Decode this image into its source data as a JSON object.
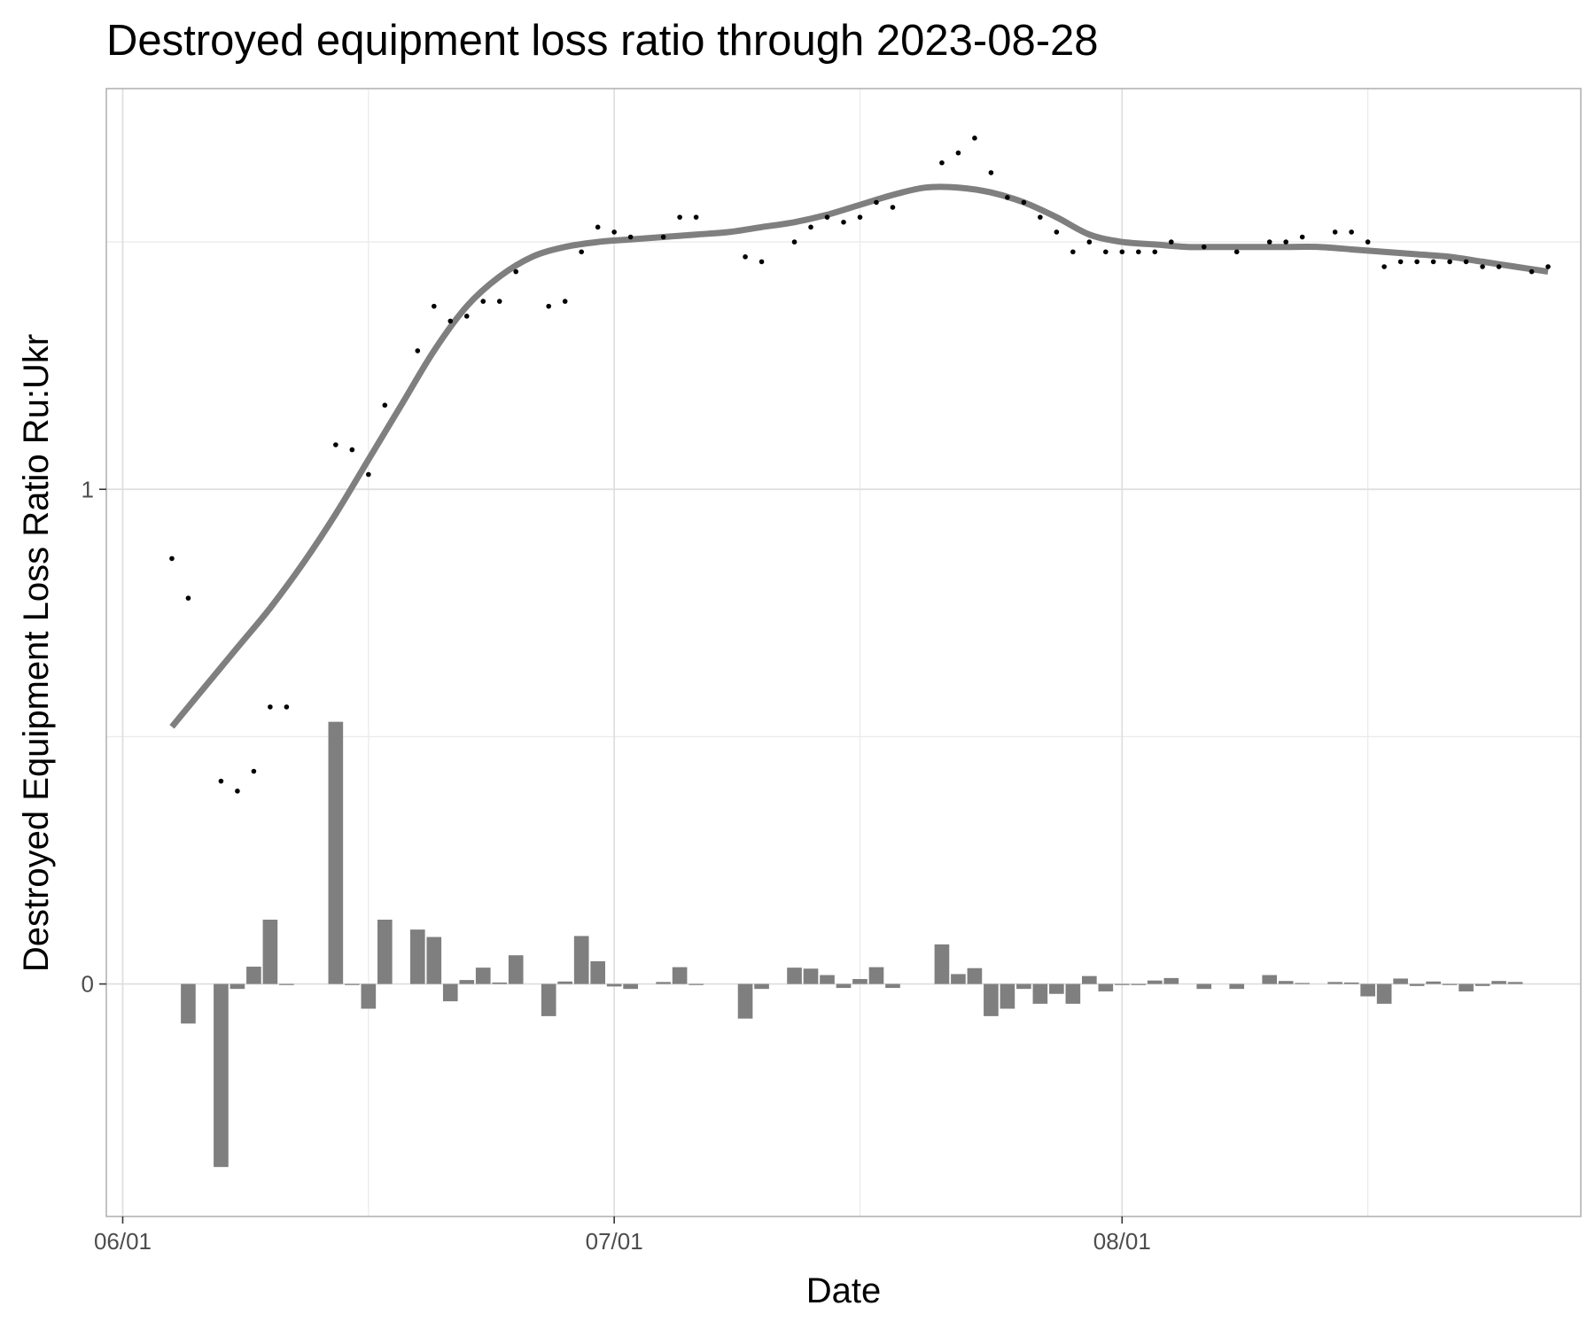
{
  "chart_data": {
    "type": "bar+scatter+line",
    "title": "Destroyed equipment loss ratio through 2023-08-28",
    "xlabel": "Date",
    "ylabel": "Destroyed Equipment Loss Ratio Ru:Ukr",
    "x_range": [
      "2023-05-31",
      "2023-08-29"
    ],
    "ylim": [
      -0.47,
      1.81
    ],
    "x_ticks": [
      {
        "date": "2023-06-01",
        "label": "06/01"
      },
      {
        "date": "2023-07-01",
        "label": "07/01"
      },
      {
        "date": "2023-08-01",
        "label": "08/01"
      }
    ],
    "x_minor_ticks": [
      "2023-06-16",
      "2023-07-16",
      "2023-08-16"
    ],
    "y_ticks": [
      {
        "value": 0,
        "label": "0"
      },
      {
        "value": 1,
        "label": "1"
      }
    ],
    "y_minor_ticks": [
      0.5,
      1.5
    ],
    "grid": true,
    "series": [
      {
        "kind": "points",
        "color": "#000000",
        "values": [
          [
            "2023-06-04",
            0.86
          ],
          [
            "2023-06-05",
            0.78
          ],
          [
            "2023-06-07",
            0.41
          ],
          [
            "2023-06-08",
            0.39
          ],
          [
            "2023-06-09",
            0.43
          ],
          [
            "2023-06-10",
            0.56
          ],
          [
            "2023-06-11",
            0.56
          ],
          [
            "2023-06-14",
            1.09
          ],
          [
            "2023-06-15",
            1.08
          ],
          [
            "2023-06-16",
            1.03
          ],
          [
            "2023-06-17",
            1.17
          ],
          [
            "2023-06-19",
            1.28
          ],
          [
            "2023-06-20",
            1.37
          ],
          [
            "2023-06-21",
            1.34
          ],
          [
            "2023-06-22",
            1.35
          ],
          [
            "2023-06-23",
            1.38
          ],
          [
            "2023-06-24",
            1.38
          ],
          [
            "2023-06-25",
            1.44
          ],
          [
            "2023-06-27",
            1.37
          ],
          [
            "2023-06-28",
            1.38
          ],
          [
            "2023-06-29",
            1.48
          ],
          [
            "2023-06-30",
            1.53
          ],
          [
            "2023-07-01",
            1.52
          ],
          [
            "2023-07-02",
            1.51
          ],
          [
            "2023-07-04",
            1.51
          ],
          [
            "2023-07-05",
            1.55
          ],
          [
            "2023-07-06",
            1.55
          ],
          [
            "2023-07-09",
            1.47
          ],
          [
            "2023-07-10",
            1.46
          ],
          [
            "2023-07-12",
            1.5
          ],
          [
            "2023-07-13",
            1.53
          ],
          [
            "2023-07-14",
            1.55
          ],
          [
            "2023-07-15",
            1.54
          ],
          [
            "2023-07-16",
            1.55
          ],
          [
            "2023-07-17",
            1.58
          ],
          [
            "2023-07-18",
            1.57
          ],
          [
            "2023-07-21",
            1.66
          ],
          [
            "2023-07-22",
            1.68
          ],
          [
            "2023-07-23",
            1.71
          ],
          [
            "2023-07-24",
            1.64
          ],
          [
            "2023-07-25",
            1.59
          ],
          [
            "2023-07-26",
            1.58
          ],
          [
            "2023-07-27",
            1.55
          ],
          [
            "2023-07-28",
            1.52
          ],
          [
            "2023-07-29",
            1.48
          ],
          [
            "2023-07-30",
            1.5
          ],
          [
            "2023-07-31",
            1.48
          ],
          [
            "2023-08-01",
            1.48
          ],
          [
            "2023-08-02",
            1.48
          ],
          [
            "2023-08-03",
            1.48
          ],
          [
            "2023-08-04",
            1.5
          ],
          [
            "2023-08-06",
            1.49
          ],
          [
            "2023-08-08",
            1.48
          ],
          [
            "2023-08-10",
            1.5
          ],
          [
            "2023-08-11",
            1.5
          ],
          [
            "2023-08-12",
            1.51
          ],
          [
            "2023-08-14",
            1.52
          ],
          [
            "2023-08-15",
            1.52
          ],
          [
            "2023-08-16",
            1.5
          ],
          [
            "2023-08-17",
            1.45
          ],
          [
            "2023-08-18",
            1.46
          ],
          [
            "2023-08-19",
            1.46
          ],
          [
            "2023-08-20",
            1.46
          ],
          [
            "2023-08-21",
            1.46
          ],
          [
            "2023-08-22",
            1.46
          ],
          [
            "2023-08-23",
            1.45
          ],
          [
            "2023-08-24",
            1.45
          ],
          [
            "2023-08-26",
            1.44
          ],
          [
            "2023-08-27",
            1.45
          ]
        ]
      },
      {
        "kind": "smooth-line",
        "color": "#7f7f7f",
        "values": [
          [
            "2023-06-04",
            0.52
          ],
          [
            "2023-06-06",
            0.6
          ],
          [
            "2023-06-08",
            0.68
          ],
          [
            "2023-06-10",
            0.76
          ],
          [
            "2023-06-12",
            0.85
          ],
          [
            "2023-06-14",
            0.95
          ],
          [
            "2023-06-16",
            1.06
          ],
          [
            "2023-06-18",
            1.17
          ],
          [
            "2023-06-20",
            1.28
          ],
          [
            "2023-06-22",
            1.37
          ],
          [
            "2023-06-24",
            1.43
          ],
          [
            "2023-06-26",
            1.47
          ],
          [
            "2023-06-28",
            1.49
          ],
          [
            "2023-06-30",
            1.5
          ],
          [
            "2023-07-02",
            1.505
          ],
          [
            "2023-07-04",
            1.51
          ],
          [
            "2023-07-06",
            1.515
          ],
          [
            "2023-07-08",
            1.52
          ],
          [
            "2023-07-10",
            1.53
          ],
          [
            "2023-07-12",
            1.54
          ],
          [
            "2023-07-14",
            1.555
          ],
          [
            "2023-07-16",
            1.575
          ],
          [
            "2023-07-18",
            1.595
          ],
          [
            "2023-07-20",
            1.61
          ],
          [
            "2023-07-22",
            1.61
          ],
          [
            "2023-07-24",
            1.6
          ],
          [
            "2023-07-26",
            1.58
          ],
          [
            "2023-07-28",
            1.55
          ],
          [
            "2023-07-30",
            1.515
          ],
          [
            "2023-08-01",
            1.5
          ],
          [
            "2023-08-03",
            1.495
          ],
          [
            "2023-08-05",
            1.49
          ],
          [
            "2023-08-07",
            1.49
          ],
          [
            "2023-08-09",
            1.49
          ],
          [
            "2023-08-11",
            1.49
          ],
          [
            "2023-08-13",
            1.49
          ],
          [
            "2023-08-15",
            1.485
          ],
          [
            "2023-08-17",
            1.48
          ],
          [
            "2023-08-19",
            1.475
          ],
          [
            "2023-08-21",
            1.47
          ],
          [
            "2023-08-23",
            1.46
          ],
          [
            "2023-08-25",
            1.45
          ],
          [
            "2023-08-27",
            1.44
          ]
        ]
      },
      {
        "kind": "bars",
        "color": "#7f7f7f",
        "values": [
          [
            "2023-06-05",
            -0.08
          ],
          [
            "2023-06-07",
            -0.37
          ],
          [
            "2023-06-08",
            -0.01
          ],
          [
            "2023-06-09",
            0.035
          ],
          [
            "2023-06-10",
            0.13
          ],
          [
            "2023-06-11",
            -0.002
          ],
          [
            "2023-06-14",
            0.53
          ],
          [
            "2023-06-15",
            -0.002
          ],
          [
            "2023-06-16",
            -0.05
          ],
          [
            "2023-06-17",
            0.13
          ],
          [
            "2023-06-19",
            0.11
          ],
          [
            "2023-06-20",
            0.095
          ],
          [
            "2023-06-21",
            -0.035
          ],
          [
            "2023-06-22",
            0.008
          ],
          [
            "2023-06-23",
            0.033
          ],
          [
            "2023-06-24",
            0.003
          ],
          [
            "2023-06-25",
            0.058
          ],
          [
            "2023-06-27",
            -0.065
          ],
          [
            "2023-06-28",
            0.005
          ],
          [
            "2023-06-29",
            0.097
          ],
          [
            "2023-06-30",
            0.046
          ],
          [
            "2023-07-01",
            -0.005
          ],
          [
            "2023-07-02",
            -0.01
          ],
          [
            "2023-07-04",
            0.004
          ],
          [
            "2023-07-05",
            0.034
          ],
          [
            "2023-07-06",
            -0.002
          ],
          [
            "2023-07-09",
            -0.07
          ],
          [
            "2023-07-10",
            -0.01
          ],
          [
            "2023-07-12",
            0.033
          ],
          [
            "2023-07-13",
            0.031
          ],
          [
            "2023-07-14",
            0.018
          ],
          [
            "2023-07-15",
            -0.008
          ],
          [
            "2023-07-16",
            0.01
          ],
          [
            "2023-07-17",
            0.034
          ],
          [
            "2023-07-18",
            -0.008
          ],
          [
            "2023-07-21",
            0.08
          ],
          [
            "2023-07-22",
            0.02
          ],
          [
            "2023-07-23",
            0.032
          ],
          [
            "2023-07-24",
            -0.065
          ],
          [
            "2023-07-25",
            -0.05
          ],
          [
            "2023-07-26",
            -0.01
          ],
          [
            "2023-07-27",
            -0.04
          ],
          [
            "2023-07-28",
            -0.02
          ],
          [
            "2023-07-29",
            -0.04
          ],
          [
            "2023-07-30",
            0.016
          ],
          [
            "2023-07-31",
            -0.015
          ],
          [
            "2023-08-01",
            -0.002
          ],
          [
            "2023-08-02",
            -0.002
          ],
          [
            "2023-08-03",
            0.007
          ],
          [
            "2023-08-04",
            0.012
          ],
          [
            "2023-08-06",
            -0.01
          ],
          [
            "2023-08-08",
            -0.01
          ],
          [
            "2023-08-10",
            0.018
          ],
          [
            "2023-08-11",
            0.006
          ],
          [
            "2023-08-12",
            0.002
          ],
          [
            "2023-08-14",
            0.004
          ],
          [
            "2023-08-15",
            0.003
          ],
          [
            "2023-08-16",
            -0.025
          ],
          [
            "2023-08-17",
            -0.04
          ],
          [
            "2023-08-18",
            0.011
          ],
          [
            "2023-08-19",
            -0.004
          ],
          [
            "2023-08-20",
            0.005
          ],
          [
            "2023-08-21",
            -0.002
          ],
          [
            "2023-08-22",
            -0.015
          ],
          [
            "2023-08-23",
            -0.004
          ],
          [
            "2023-08-24",
            0.006
          ],
          [
            "2023-08-25",
            0.004
          ]
        ]
      }
    ]
  }
}
